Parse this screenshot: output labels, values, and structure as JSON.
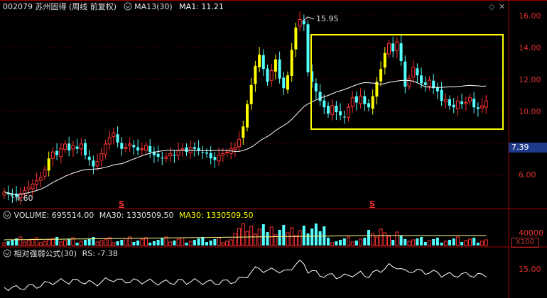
{
  "header": {
    "title": "002079 苏州固得 (周线 前复权)",
    "ma13_label": "MA13(30)",
    "ma1_label": "MA1: 11.21"
  },
  "price_axis": [
    "16.00",
    "14.00",
    "12.00",
    "10.00",
    "6.00"
  ],
  "price_tag": "7.39",
  "annotations": {
    "high": "15.95",
    "low": "4.60"
  },
  "markers": [
    "S",
    "S"
  ],
  "volume_panel": {
    "volume": "VOLUME: 695514.00",
    "ma30_a": "MA30: 1330509.50",
    "ma30_b": "MA30: 1330509.50",
    "axis_label": "40000",
    "unit_button": "X100"
  },
  "rs_panel": {
    "title": "相对强弱公式(30)",
    "rs_value": "RS: -7.38",
    "axis_label": "15.00"
  },
  "colors": {
    "up": "#ff3232",
    "down": "#54ffff",
    "yellow": "#ffff00",
    "ma_line": "#ffffff",
    "grid": "#7a0000",
    "border": "#a00000",
    "box": "#ffff00"
  },
  "chart_data": {
    "type": "candlestick",
    "y_axis_ticks": [
      6,
      10,
      12,
      14,
      16
    ],
    "ylim": [
      4,
      17
    ],
    "annotated_high": 15.95,
    "annotated_low": 4.6,
    "last_ma": 11.21
  }
}
